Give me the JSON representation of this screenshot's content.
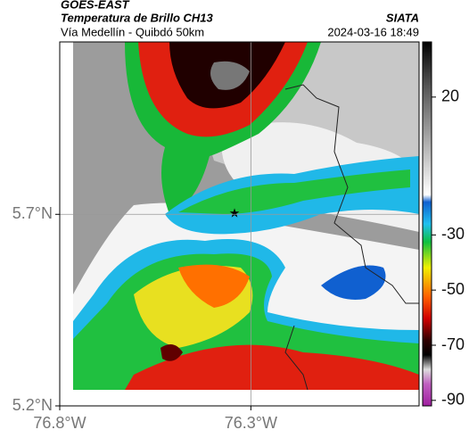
{
  "header": {
    "title": "GOES-EAST",
    "subtitle": "Temperatura de Brillo CH13",
    "source": "SIATA",
    "location": "Vía Medellín - Quibdó 50km",
    "timestamp": "2024-03-16 18:49"
  },
  "map": {
    "xlim": [
      -76.8,
      -75.86
    ],
    "ylim": [
      5.2,
      6.15
    ],
    "xticks": [
      {
        "value": -76.8,
        "label": "76.8°W"
      },
      {
        "value": -76.3,
        "label": "76.3°W"
      }
    ],
    "yticks": [
      {
        "value": 5.7,
        "label": "5.7°N"
      },
      {
        "value": 5.2,
        "label": "5.2°N"
      }
    ]
  },
  "colorbar": {
    "lim": [
      -92,
      40
    ],
    "ticks": [
      20,
      -30,
      -50,
      -70,
      -90
    ]
  }
}
